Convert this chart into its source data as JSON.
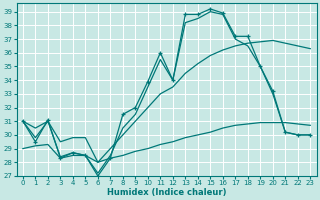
{
  "background_color": "#c8e8e4",
  "grid_color": "#daf0ee",
  "line_color": "#007878",
  "xlabel": "Humidex (Indice chaleur)",
  "xlim": [
    -0.5,
    23.5
  ],
  "ylim": [
    27,
    39.6
  ],
  "xticks": [
    0,
    1,
    2,
    3,
    4,
    5,
    6,
    7,
    8,
    9,
    10,
    11,
    12,
    13,
    14,
    15,
    16,
    17,
    18,
    19,
    20,
    21,
    22,
    23
  ],
  "yticks": [
    27,
    28,
    29,
    30,
    31,
    32,
    33,
    34,
    35,
    36,
    37,
    38,
    39
  ],
  "curve_marked": {
    "x": [
      0,
      1,
      2,
      3,
      4,
      5,
      6,
      7,
      8,
      9,
      10,
      11,
      12,
      13,
      14,
      15,
      16,
      17,
      18,
      19,
      20,
      21,
      22,
      23
    ],
    "y": [
      31,
      29.5,
      31.1,
      28.3,
      28.7,
      28.5,
      27.0,
      28.3,
      31.5,
      32.0,
      33.9,
      36.0,
      34.0,
      38.8,
      38.8,
      39.2,
      38.9,
      37.2,
      37.2,
      35.0,
      33.2,
      30.2,
      30.0,
      30.0
    ]
  },
  "curve_smooth_high": {
    "x": [
      0,
      1,
      2,
      3,
      4,
      5,
      6,
      7,
      8,
      9,
      10,
      11,
      12,
      13,
      14,
      15,
      16,
      17,
      18,
      19,
      20,
      21,
      22,
      23
    ],
    "y": [
      31,
      29.8,
      31.0,
      28.4,
      28.7,
      28.5,
      27.2,
      28.5,
      30.5,
      31.5,
      33.5,
      35.5,
      34.0,
      38.2,
      38.5,
      39.0,
      38.8,
      37.0,
      36.5,
      35.0,
      33.0,
      30.2,
      30.0,
      30.0
    ]
  },
  "curve_max_envelope": {
    "x": [
      0,
      1,
      2,
      3,
      4,
      5,
      6,
      7,
      8,
      9,
      10,
      11,
      12,
      13,
      14,
      15,
      16,
      17,
      18,
      19,
      20,
      21,
      22,
      23
    ],
    "y": [
      31,
      30.5,
      31.0,
      29.5,
      29.8,
      29.8,
      28.0,
      29.0,
      30.0,
      31.0,
      32.0,
      33.0,
      33.5,
      34.5,
      35.2,
      35.8,
      36.2,
      36.5,
      36.7,
      36.8,
      36.9,
      36.7,
      36.5,
      36.3
    ]
  },
  "curve_min_baseline": {
    "x": [
      0,
      1,
      2,
      3,
      4,
      5,
      6,
      7,
      8,
      9,
      10,
      11,
      12,
      13,
      14,
      15,
      16,
      17,
      18,
      19,
      20,
      21,
      22,
      23
    ],
    "y": [
      29.0,
      29.2,
      29.3,
      28.3,
      28.5,
      28.5,
      28.0,
      28.3,
      28.5,
      28.8,
      29.0,
      29.3,
      29.5,
      29.8,
      30.0,
      30.2,
      30.5,
      30.7,
      30.8,
      30.9,
      30.9,
      30.9,
      30.8,
      30.7
    ]
  }
}
